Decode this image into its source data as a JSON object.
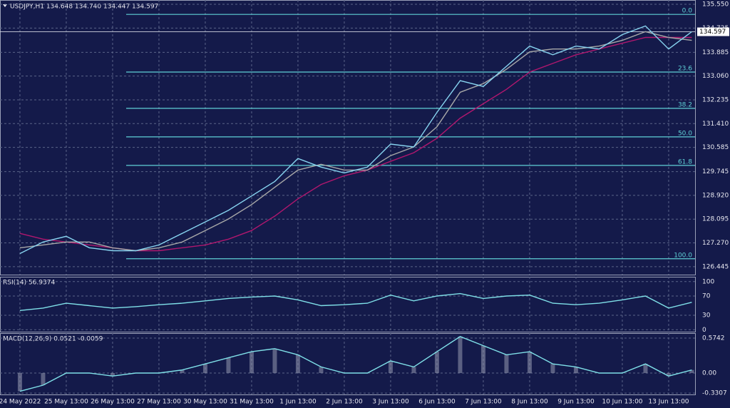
{
  "chart_data": [
    {
      "type": "line",
      "title": "USDJPY,H1  134.648 134.740 134.447 134.597",
      "xlim": [
        -0.43,
        14.57
      ],
      "ylim": [
        126.17,
        135.7
      ],
      "yticks": [
        {
          "value": 135.55,
          "label": "135.550"
        },
        {
          "value": 134.725,
          "label": "134.725"
        },
        {
          "value": 133.885,
          "label": "133.885"
        },
        {
          "value": 133.06,
          "label": "133.060"
        },
        {
          "value": 132.235,
          "label": "132.235"
        },
        {
          "value": 131.41,
          "label": "131.410"
        },
        {
          "value": 130.585,
          "label": "130.585"
        },
        {
          "value": 129.745,
          "label": "129.745"
        },
        {
          "value": 128.92,
          "label": "128.920"
        },
        {
          "value": 128.095,
          "label": "128.095"
        },
        {
          "value": 127.27,
          "label": "127.270"
        },
        {
          "value": 126.445,
          "label": "126.445"
        }
      ],
      "last_price": 134.597,
      "fib_levels": [
        {
          "value": 135.2,
          "label": "0.0"
        },
        {
          "value": 133.2,
          "label": "23.6"
        },
        {
          "value": 131.94,
          "label": "38.2"
        },
        {
          "value": 130.95,
          "label": "50.0"
        },
        {
          "value": 129.96,
          "label": "61.8"
        },
        {
          "value": 126.72,
          "label": "100.0"
        }
      ],
      "x": [
        0,
        0.5,
        1,
        1.5,
        2,
        2.5,
        3,
        3.5,
        4,
        4.5,
        5,
        5.5,
        6,
        6.5,
        7,
        7.5,
        8,
        8.5,
        9,
        9.5,
        10,
        10.5,
        11,
        11.5,
        12,
        12.5,
        13,
        13.5,
        14,
        14.5
      ],
      "series": [
        {
          "color": "#b0176e",
          "values": [
            127.6,
            127.4,
            127.3,
            127.2,
            127.1,
            127.0,
            127.0,
            127.1,
            127.2,
            127.4,
            127.7,
            128.2,
            128.8,
            129.3,
            129.6,
            129.8,
            130.1,
            130.4,
            130.9,
            131.6,
            132.1,
            132.6,
            133.2,
            133.5,
            133.8,
            134.0,
            134.2,
            134.4,
            134.4,
            134.4
          ]
        },
        {
          "color": "#a8a8a8",
          "values": [
            127.1,
            127.2,
            127.3,
            127.3,
            127.1,
            127.0,
            127.1,
            127.3,
            127.7,
            128.1,
            128.6,
            129.2,
            129.8,
            130.0,
            129.8,
            129.8,
            130.3,
            130.6,
            131.3,
            132.5,
            132.8,
            133.3,
            133.9,
            134.0,
            134.0,
            134.1,
            134.3,
            134.6,
            134.4,
            134.3
          ]
        },
        {
          "color": "#87d4f0",
          "values": [
            126.9,
            127.3,
            127.5,
            127.1,
            127.0,
            127.0,
            127.2,
            127.6,
            128.0,
            128.4,
            128.9,
            129.4,
            130.2,
            129.9,
            129.7,
            129.9,
            130.7,
            130.6,
            131.8,
            132.9,
            132.7,
            133.4,
            134.1,
            133.8,
            134.1,
            134.0,
            134.5,
            134.8,
            134.0,
            134.6
          ]
        }
      ]
    },
    {
      "type": "line",
      "title": "RSI(14) 56.9374",
      "xlim": [
        -0.43,
        14.57
      ],
      "ylim": [
        -4,
        110
      ],
      "yticks": [
        100,
        70,
        30,
        0
      ],
      "x": [
        0,
        0.5,
        1,
        1.5,
        2,
        2.5,
        3,
        3.5,
        4,
        4.5,
        5,
        5.5,
        6,
        6.5,
        7,
        7.5,
        8,
        8.5,
        9,
        9.5,
        10,
        10.5,
        11,
        11.5,
        12,
        12.5,
        13,
        13.5,
        14,
        14.5
      ],
      "series": [
        {
          "color": "#7fe0e8",
          "values": [
            40,
            45,
            55,
            50,
            45,
            48,
            52,
            55,
            60,
            65,
            68,
            70,
            62,
            50,
            52,
            55,
            72,
            60,
            70,
            75,
            65,
            70,
            72,
            55,
            52,
            55,
            62,
            70,
            45,
            57
          ]
        }
      ]
    },
    {
      "type": "line",
      "title": "MACD(12,26,9) 0.0521 -0.0059",
      "xlim": [
        -0.43,
        14.57
      ],
      "ylim": [
        -0.352,
        0.656
      ],
      "yticks": [
        0.5742,
        {
          "value": 0,
          "label": "0.00"
        },
        -0.3307
      ],
      "xticks": [
        {
          "value": 0,
          "label": "24 May 2022"
        },
        {
          "value": 1,
          "label": "25 May 13:00"
        },
        {
          "value": 2,
          "label": "26 May 13:00"
        },
        {
          "value": 3,
          "label": "27 May 13:00"
        },
        {
          "value": 4,
          "label": "30 May 13:00"
        },
        {
          "value": 5,
          "label": "31 May 13:00"
        },
        {
          "value": 6,
          "label": "1 Jun 13:00"
        },
        {
          "value": 7,
          "label": "2 Jun 13:00"
        },
        {
          "value": 8,
          "label": "3 Jun 13:00"
        },
        {
          "value": 9,
          "label": "6 Jun 13:00"
        },
        {
          "value": 10,
          "label": "7 Jun 13:00"
        },
        {
          "value": 11,
          "label": "8 Jun 13:00"
        },
        {
          "value": 12,
          "label": "9 Jun 13:00"
        },
        {
          "value": 13,
          "label": "10 Jun 13:00"
        },
        {
          "value": 14,
          "label": "13 Jun 13:00"
        }
      ],
      "x": [
        0,
        0.5,
        1,
        1.5,
        2,
        2.5,
        3,
        3.5,
        4,
        4.5,
        5,
        5.5,
        6,
        6.5,
        7,
        7.5,
        8,
        8.5,
        9,
        9.5,
        10,
        10.5,
        11,
        11.5,
        12,
        12.5,
        13,
        13.5,
        14,
        14.5
      ],
      "series": [
        {
          "color": "#7fe0e8",
          "values": [
            -0.3,
            -0.2,
            0.0,
            0.0,
            -0.05,
            0.0,
            0.0,
            0.05,
            0.15,
            0.25,
            0.35,
            0.4,
            0.3,
            0.1,
            0.0,
            0.0,
            0.2,
            0.1,
            0.35,
            0.6,
            0.45,
            0.3,
            0.35,
            0.15,
            0.1,
            0.0,
            0.0,
            0.15,
            -0.05,
            0.05
          ]
        }
      ]
    }
  ]
}
